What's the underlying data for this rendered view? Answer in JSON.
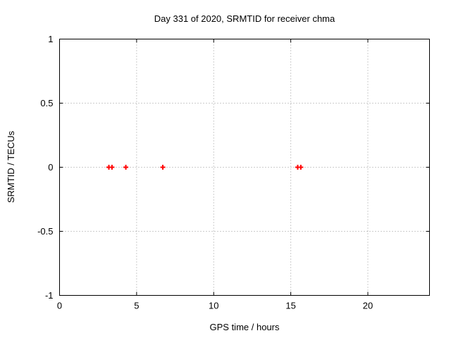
{
  "page": {
    "background": "#ffffff"
  },
  "chart_data": {
    "type": "scatter",
    "title": "Day 331 of 2020, SRMTID for receiver chma",
    "xlabel": "GPS time / hours",
    "ylabel": "SRMTID / TECUs",
    "xlim": [
      0,
      24
    ],
    "ylim": [
      -1,
      1
    ],
    "x_ticks": [
      0,
      5,
      10,
      15,
      20
    ],
    "x_tick_labels": [
      "0",
      "5",
      "10",
      "15",
      "20"
    ],
    "y_ticks": [
      -1,
      -0.5,
      0,
      0.5,
      1
    ],
    "y_tick_labels": [
      "-1",
      "-0.5",
      "0",
      "0.5",
      "1"
    ],
    "grid": true,
    "legend_position": "none",
    "marker": "plus",
    "series": [
      {
        "name": "SRMTID",
        "color": "#ff0000",
        "points": [
          {
            "x": 3.2,
            "y": 0
          },
          {
            "x": 3.4,
            "y": 0
          },
          {
            "x": 4.3,
            "y": 0
          },
          {
            "x": 6.7,
            "y": 0
          },
          {
            "x": 15.45,
            "y": 0
          },
          {
            "x": 15.65,
            "y": 0
          }
        ]
      }
    ],
    "colors": {
      "frame": "#000000",
      "grid": "#999999",
      "text": "#000000",
      "background": "#ffffff"
    }
  }
}
